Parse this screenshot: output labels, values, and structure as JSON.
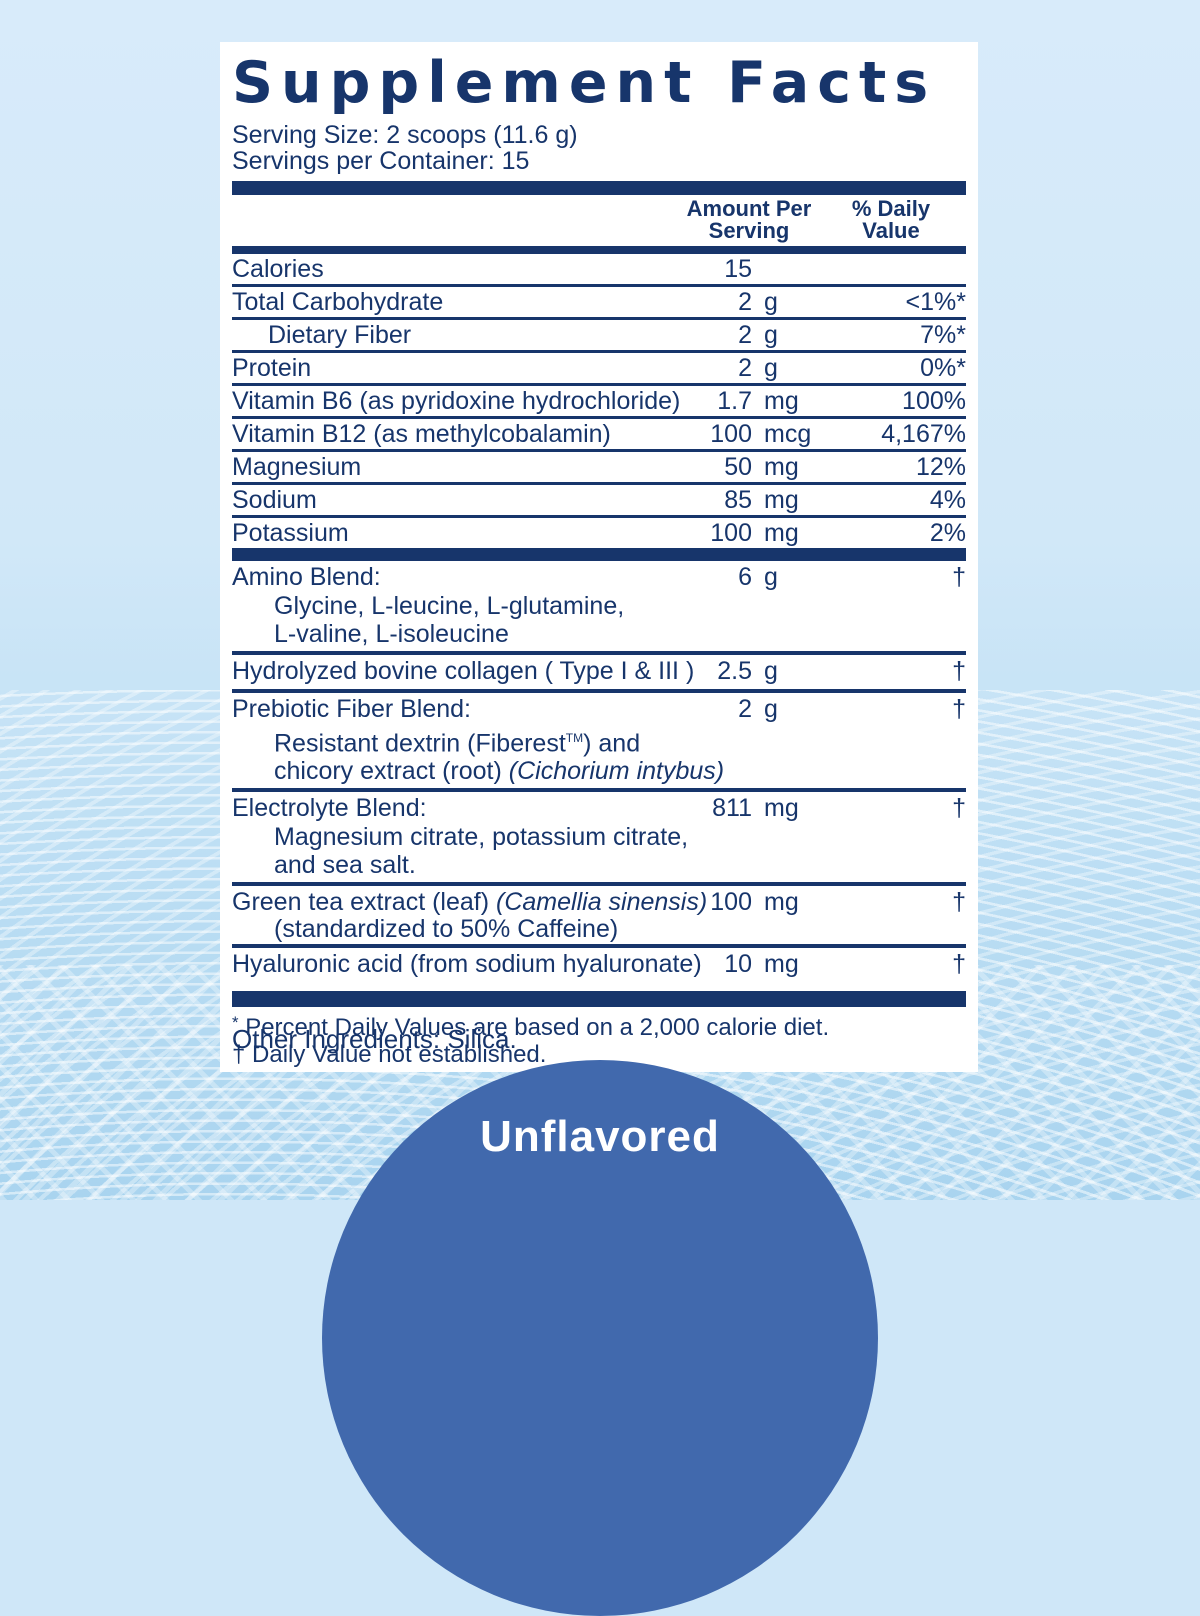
{
  "colors": {
    "navy": "#17356b",
    "panel_background": "#ffffff",
    "background_light": "#d6eaf9",
    "background_deep": "#a9d4ef",
    "flavor_circle": "#4169ad",
    "flavor_text": "#ffffff"
  },
  "label": {
    "title": "Supplement Facts",
    "serving_size": "Serving Size: 2 scoops (11.6 g)",
    "servings_per_container": "Servings per Container: 15",
    "columns": {
      "amount_line1": "Amount Per",
      "amount_line2": "Serving",
      "dv_line1": "% Daily",
      "dv_line2": "Value"
    }
  },
  "rows": [
    {
      "name": "Calories",
      "amount": "15",
      "unit": "",
      "dv": ""
    },
    {
      "name": "Total Carbohydrate",
      "amount": "2",
      "unit": "g",
      "dv": "<1%*"
    },
    {
      "name": "Dietary Fiber",
      "amount": "2",
      "unit": "g",
      "dv": "7%*"
    },
    {
      "name": "Protein",
      "amount": "2",
      "unit": "g",
      "dv": "0%*"
    },
    {
      "name": "Vitamin B6 (as pyridoxine hydrochloride)",
      "amount": "1.7",
      "unit": "mg",
      "dv": "100%"
    },
    {
      "name": "Vitamin B12 (as methylcobalamin)",
      "amount": "100",
      "unit": "mcg",
      "dv": "4,167%"
    },
    {
      "name": "Magnesium",
      "amount": "50",
      "unit": "mg",
      "dv": "12%"
    },
    {
      "name": "Sodium",
      "amount": "85",
      "unit": "mg",
      "dv": "4%"
    },
    {
      "name": "Potassium",
      "amount": "100",
      "unit": "mg",
      "dv": "2%"
    }
  ],
  "blends": [
    {
      "name": "Amino Blend:",
      "amount": "6",
      "unit": "g",
      "dv": "†",
      "sub_lines": [
        "Glycine, L-leucine, L-glutamine,",
        "L-valine, L-isoleucine"
      ]
    },
    {
      "name": "Hydrolyzed bovine collagen ( Type I & III )",
      "amount": "2.5",
      "unit": "g",
      "dv": "†"
    },
    {
      "name": "Prebiotic Fiber Blend:",
      "amount": "2",
      "unit": "g",
      "dv": "†",
      "sub1_prefix": "Resistant dextrin (Fiberest",
      "sub1_tm": "TM",
      "sub1_suffix": ") and",
      "sub2_normal": "chicory extract (root) ",
      "sub2_italic": "(Cichorium intybus)"
    },
    {
      "name": "Electrolyte Blend:",
      "amount": "811",
      "unit": "mg",
      "dv": "†",
      "sub_lines": [
        "Magnesium citrate, potassium citrate,",
        "and sea salt."
      ]
    },
    {
      "name_normal": "Green tea extract (leaf) ",
      "name_italic": "(Camellia sinensis)",
      "amount": "100",
      "unit": "mg",
      "dv": "†",
      "sub_lines": [
        "(standardized to 50% Caffeine)"
      ]
    },
    {
      "name": "Hyaluronic acid (from sodium hyaluronate)",
      "amount": "10",
      "unit": "mg",
      "dv": "†"
    }
  ],
  "footnotes": [
    {
      "marker": "*",
      "text": " Percent Daily Values are based on a 2,000 calorie diet."
    },
    {
      "marker": "†",
      "text": " Daily Value not established."
    }
  ],
  "other_ingredients": "Other Ingredients: Silica.",
  "flavor": "Unflavored"
}
